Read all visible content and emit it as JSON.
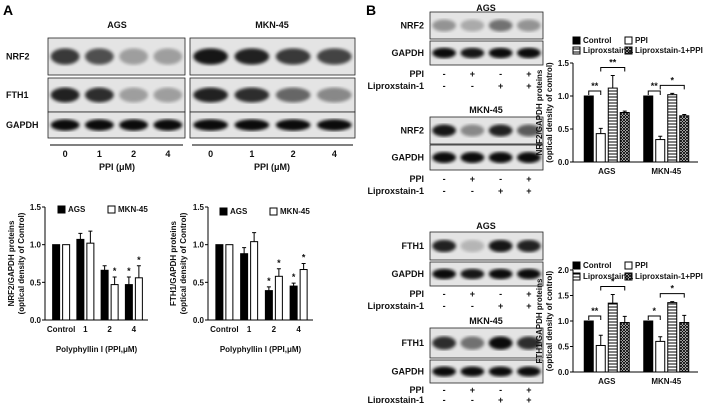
{
  "panels": {
    "a": "A",
    "b": "B"
  },
  "panel_a": {
    "blot": {
      "cell_lines": [
        "AGS",
        "MKN-45"
      ],
      "rows": [
        "NRF2",
        "FTH1",
        "GAPDH"
      ],
      "lanes": [
        "0",
        "1",
        "2",
        "4"
      ],
      "xlabel": "PPI (μM)"
    }
  },
  "panel_b": {
    "blots": [
      {
        "title": "AGS",
        "rows": [
          "NRF2",
          "GAPDH"
        ]
      },
      {
        "title": "MKN-45",
        "rows": [
          "NRF2",
          "GAPDH"
        ]
      },
      {
        "title": "AGS",
        "rows": [
          "FTH1",
          "GAPDH"
        ]
      },
      {
        "title": "MKN-45",
        "rows": [
          "FTH1",
          "GAPDH"
        ]
      }
    ],
    "treatments": [
      {
        "label": "PPI",
        "values": [
          "-",
          "+",
          "-",
          "+"
        ]
      },
      {
        "label": "Liproxstain-1",
        "values": [
          "-",
          "-",
          "+",
          "+"
        ]
      }
    ]
  },
  "colors": {
    "bar_dark": "#000000",
    "bar_light": "#ffffff"
  },
  "chart_data": [
    {
      "type": "bar",
      "categories": [
        "Control",
        "1",
        "2",
        "4"
      ],
      "xlabel": "Polyphyllin I (PPI,μM)",
      "ylabel": [
        "NRF2/GAPDH proteins",
        "(optical density of Control)"
      ],
      "ylim": [
        0,
        1.5
      ],
      "yticks": [
        "0.0",
        "0.5",
        "1.0",
        "1.5"
      ],
      "legend": "top",
      "series": [
        {
          "name": "AGS",
          "values": [
            1.0,
            1.07,
            0.66,
            0.47
          ],
          "errors": [
            0,
            0.08,
            0.06,
            0.1
          ],
          "fill": "solid",
          "stars": [
            "",
            "",
            "",
            "*"
          ]
        },
        {
          "name": "MKN-45",
          "values": [
            1.0,
            1.02,
            0.47,
            0.56
          ],
          "errors": [
            0,
            0.16,
            0.1,
            0.16
          ],
          "fill": "open",
          "stars": [
            "",
            "",
            "*",
            "*"
          ]
        }
      ]
    },
    {
      "type": "bar",
      "categories": [
        "Control",
        "1",
        "2",
        "4"
      ],
      "xlabel": "Polyphyllin I (PPI,μM)",
      "ylabel": [
        "FTH1/GAPDH proteins",
        "(optical density of Control)"
      ],
      "ylim": [
        0,
        1.5
      ],
      "yticks": [
        "0.0",
        "0.5",
        "1.0",
        "1.5"
      ],
      "legend": "top",
      "series": [
        {
          "name": "AGS",
          "values": [
            1.0,
            0.88,
            0.39,
            0.45
          ],
          "errors": [
            0,
            0.08,
            0.05,
            0.04
          ],
          "fill": "solid",
          "stars": [
            "",
            "",
            "*",
            "*"
          ]
        },
        {
          "name": "MKN-45",
          "values": [
            1.0,
            1.04,
            0.58,
            0.67
          ],
          "errors": [
            0,
            0.12,
            0.1,
            0.08
          ],
          "fill": "open",
          "stars": [
            "",
            "",
            "*",
            "*"
          ]
        }
      ]
    },
    {
      "type": "bar",
      "categories": [
        "AGS",
        "MKN-45"
      ],
      "xlabel": "",
      "ylabel": [
        "NRF2/GAPDH proteins",
        "(optical density of control)"
      ],
      "ylim": [
        0,
        1.5
      ],
      "yticks": [
        "0.0",
        "0.5",
        "1.0",
        "1.5"
      ],
      "legend": "top",
      "series": [
        {
          "name": "Control",
          "values": [
            1.0,
            1.0
          ],
          "errors": [
            0,
            0
          ],
          "fill": "solid"
        },
        {
          "name": "PPI",
          "values": [
            0.43,
            0.34
          ],
          "errors": [
            0.08,
            0.05
          ],
          "fill": "open"
        },
        {
          "name": "Liproxstain-1",
          "values": [
            1.12,
            1.02
          ],
          "errors": [
            0.19,
            0.02
          ],
          "fill": "hlines"
        },
        {
          "name": "Liproxstain-1+PPI",
          "values": [
            0.75,
            0.7
          ],
          "errors": [
            0.02,
            0.02
          ],
          "fill": "cross"
        }
      ],
      "brackets": [
        {
          "group": 0,
          "from": 0,
          "to": 1,
          "label": "**"
        },
        {
          "group": 0,
          "from": 1,
          "to": 3,
          "label": "**"
        },
        {
          "group": 1,
          "from": 0,
          "to": 1,
          "label": "**"
        },
        {
          "group": 1,
          "from": 1,
          "to": 3,
          "label": "*"
        }
      ]
    },
    {
      "type": "bar",
      "categories": [
        "AGS",
        "MKN-45"
      ],
      "xlabel": "",
      "ylabel": [
        "FTH1/GAPDH proteins",
        "(optical density of control)"
      ],
      "ylim": [
        0,
        2.0
      ],
      "yticks": [
        "0.0",
        "0.5",
        "1.0",
        "1.5",
        "2.0"
      ],
      "legend": "top",
      "series": [
        {
          "name": "Control",
          "values": [
            1.0,
            1.0
          ],
          "errors": [
            0,
            0
          ],
          "fill": "solid"
        },
        {
          "name": "PPI",
          "values": [
            0.52,
            0.6
          ],
          "errors": [
            0.2,
            0.09
          ],
          "fill": "open"
        },
        {
          "name": "Liproxstain-1",
          "values": [
            1.35,
            1.36
          ],
          "errors": [
            0.17,
            0.02
          ],
          "fill": "hlines"
        },
        {
          "name": "Liproxstain-1+PPI",
          "values": [
            0.97,
            0.97
          ],
          "errors": [
            0.12,
            0.14
          ],
          "fill": "cross"
        }
      ],
      "brackets": [
        {
          "group": 0,
          "from": 0,
          "to": 1,
          "label": "**"
        },
        {
          "group": 0,
          "from": 1,
          "to": 3,
          "label": "*"
        },
        {
          "group": 1,
          "from": 0,
          "to": 1,
          "label": "*"
        },
        {
          "group": 1,
          "from": 1,
          "to": 3,
          "label": "*"
        }
      ]
    }
  ]
}
